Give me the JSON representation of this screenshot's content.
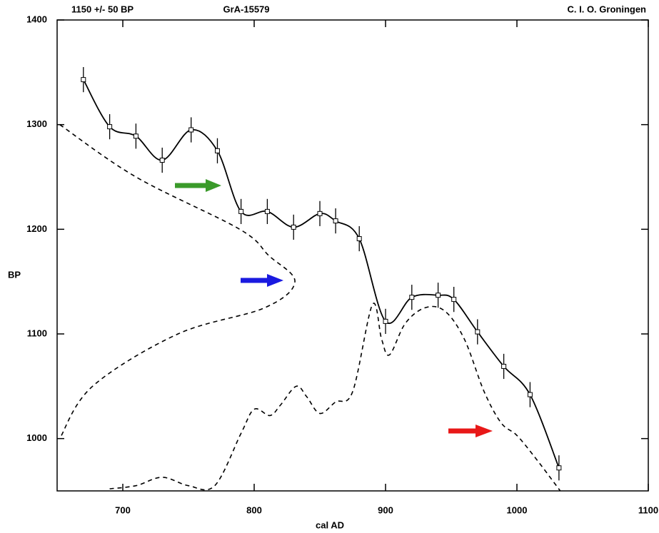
{
  "chart_data": {
    "type": "line",
    "title_left": "1150 +/- 50 BP",
    "title": "GrA-15579",
    "title_right": "C. I. O. Groningen",
    "xlabel": "cal AD",
    "ylabel": "BP",
    "xlim": [
      650,
      1100
    ],
    "ylim": [
      950,
      1400
    ],
    "xticks": [
      700,
      800,
      900,
      1000,
      1100
    ],
    "yticks": [
      1000,
      1100,
      1200,
      1300,
      1400
    ],
    "series": [
      {
        "color": "#000000",
        "dashed": false,
        "markers": true,
        "x": [
          670,
          690,
          710,
          730,
          752,
          772,
          790,
          810,
          830,
          850,
          862,
          880,
          900,
          920,
          940,
          952,
          970,
          990,
          1010,
          1032
        ],
        "values": [
          1343,
          1298,
          1289,
          1266,
          1295,
          1275,
          1217,
          1217,
          1202,
          1215,
          1208,
          1191,
          1112,
          1135,
          1137,
          1133,
          1102,
          1069,
          1042,
          972
        ],
        "errors": [
          12,
          12,
          12,
          12,
          12,
          12,
          12,
          12,
          12,
          12,
          12,
          12,
          12,
          12,
          12,
          12,
          12,
          12,
          12,
          12
        ]
      },
      {
        "color": "#000000",
        "dashed": true,
        "markers": false,
        "x": [
          652,
          710,
          789,
          811,
          831,
          808,
          742,
          677,
          652
        ],
        "values": [
          1300,
          1250,
          1200,
          1175,
          1150,
          1125,
          1100,
          1050,
          1000
        ]
      },
      {
        "color": "#000000",
        "dashed": true,
        "markers": false,
        "x": [
          690,
          710,
          730,
          750,
          770,
          790,
          800,
          812,
          820,
          832,
          840,
          850,
          862,
          875,
          890,
          897,
          903,
          915,
          930,
          945,
          960,
          975,
          988,
          1000,
          1015,
          1033
        ],
        "values": [
          952,
          955,
          963,
          955,
          955,
          1005,
          1028,
          1022,
          1032,
          1050,
          1040,
          1024,
          1035,
          1045,
          1128,
          1095,
          1080,
          1110,
          1125,
          1122,
          1095,
          1045,
          1015,
          1003,
          980,
          950
        ]
      }
    ]
  }
}
